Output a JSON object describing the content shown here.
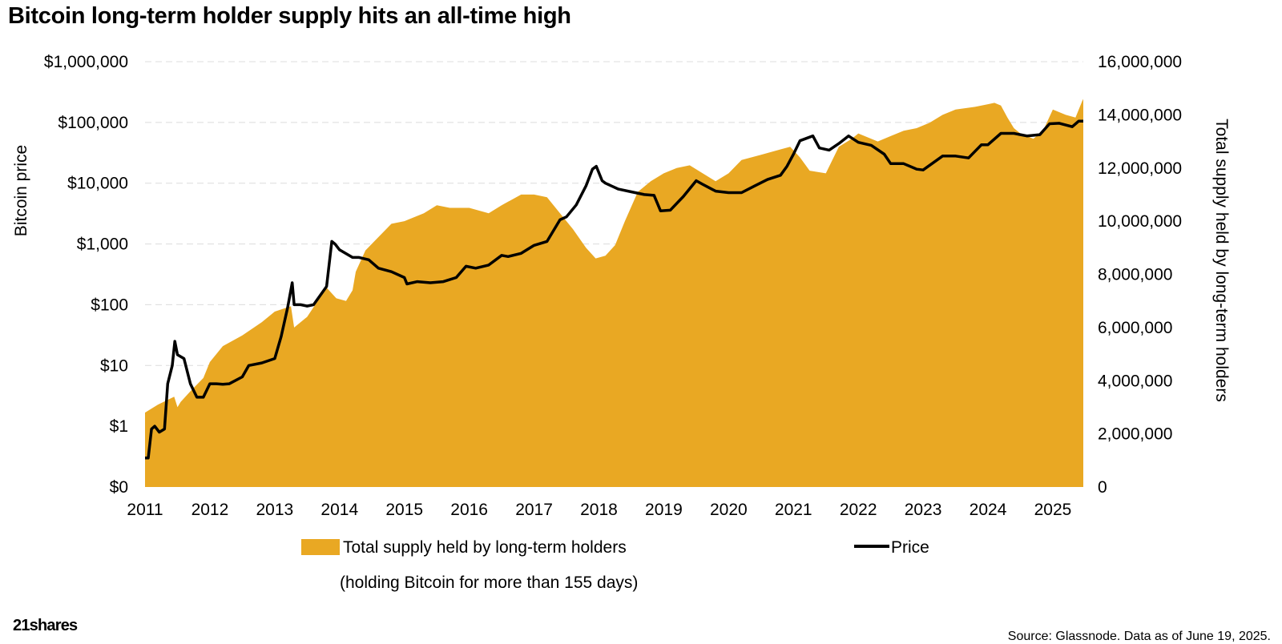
{
  "chart_data": {
    "type": "area+line",
    "title": "Bitcoin long-term holder supply hits an all-time high",
    "left_axis_label": "Bitcoin price",
    "right_axis_label": "Total supply held by long-term holders",
    "left_axis_scale": "log",
    "left_ticks": [
      "$0",
      "$1",
      "$10",
      "$100",
      "$1,000",
      "$10,000",
      "$100,000",
      "$1,000,000"
    ],
    "left_tick_values": [
      0.1,
      1,
      10,
      100,
      1000,
      10000,
      100000,
      1000000
    ],
    "right_ticks": [
      "0",
      "2,000,000",
      "4,000,000",
      "6,000,000",
      "8,000,000",
      "10,000,000",
      "12,000,000",
      "14,000,000",
      "16,000,000"
    ],
    "right_ylim": [
      0,
      16000000
    ],
    "x_ticks": [
      "2011",
      "2012",
      "2013",
      "2014",
      "2015",
      "2016",
      "2017",
      "2018",
      "2019",
      "2020",
      "2021",
      "2022",
      "2023",
      "2024",
      "2025"
    ],
    "xlim": [
      2011.0,
      2025.47
    ],
    "series": [
      {
        "name": "Total supply held by long-term holders",
        "axis": "right",
        "style": "area",
        "color": "#E9A823",
        "x": [
          2011.0,
          2011.2,
          2011.45,
          2011.5,
          2011.55,
          2011.7,
          2011.9,
          2012.0,
          2012.2,
          2012.5,
          2012.8,
          2013.0,
          2013.25,
          2013.3,
          2013.5,
          2013.8,
          2013.95,
          2014.1,
          2014.2,
          2014.25,
          2014.4,
          2014.6,
          2014.8,
          2015.0,
          2015.3,
          2015.5,
          2015.7,
          2016.0,
          2016.3,
          2016.5,
          2016.8,
          2017.0,
          2017.2,
          2017.4,
          2017.6,
          2017.8,
          2017.95,
          2018.1,
          2018.25,
          2018.4,
          2018.6,
          2018.8,
          2019.0,
          2019.2,
          2019.4,
          2019.6,
          2019.8,
          2020.0,
          2020.2,
          2020.5,
          2020.8,
          2020.95,
          2021.1,
          2021.25,
          2021.5,
          2021.7,
          2021.9,
          2022.0,
          2022.3,
          2022.5,
          2022.7,
          2022.9,
          2023.1,
          2023.3,
          2023.5,
          2023.8,
          2024.0,
          2024.1,
          2024.2,
          2024.3,
          2024.4,
          2024.5,
          2024.7,
          2024.85,
          2025.0,
          2025.2,
          2025.35,
          2025.45,
          2025.47
        ],
        "values": [
          2800000,
          3100000,
          3400000,
          3000000,
          3200000,
          3600000,
          4100000,
          4700000,
          5300000,
          5700000,
          6200000,
          6600000,
          6800000,
          6000000,
          6400000,
          7500000,
          7100000,
          7000000,
          7400000,
          8100000,
          8900000,
          9400000,
          9900000,
          10000000,
          10300000,
          10600000,
          10500000,
          10500000,
          10300000,
          10600000,
          11000000,
          11000000,
          10900000,
          10300000,
          9700000,
          9000000,
          8600000,
          8700000,
          9100000,
          10000000,
          11100000,
          11500000,
          11800000,
          12000000,
          12100000,
          11800000,
          11500000,
          11800000,
          12300000,
          12500000,
          12700000,
          12800000,
          12400000,
          11900000,
          11800000,
          12800000,
          13100000,
          13300000,
          13000000,
          13200000,
          13400000,
          13500000,
          13700000,
          14000000,
          14200000,
          14300000,
          14400000,
          14450000,
          14350000,
          13900000,
          13500000,
          13300000,
          13100000,
          13400000,
          14200000,
          14000000,
          13900000,
          14500000,
          14600000
        ]
      },
      {
        "name": "Price",
        "axis": "left",
        "style": "line",
        "color": "#000000",
        "x": [
          2011.0,
          2011.05,
          2011.1,
          2011.15,
          2011.22,
          2011.3,
          2011.35,
          2011.42,
          2011.46,
          2011.5,
          2011.6,
          2011.7,
          2011.8,
          2011.9,
          2012.0,
          2012.1,
          2012.2,
          2012.3,
          2012.5,
          2012.6,
          2012.8,
          2013.0,
          2013.1,
          2013.2,
          2013.27,
          2013.3,
          2013.4,
          2013.5,
          2013.6,
          2013.8,
          2013.88,
          2013.93,
          2014.0,
          2014.2,
          2014.3,
          2014.45,
          2014.6,
          2014.8,
          2015.0,
          2015.04,
          2015.2,
          2015.4,
          2015.6,
          2015.8,
          2015.95,
          2016.1,
          2016.3,
          2016.5,
          2016.6,
          2016.8,
          2017.0,
          2017.2,
          2017.4,
          2017.5,
          2017.65,
          2017.8,
          2017.9,
          2017.96,
          2018.05,
          2018.1,
          2018.3,
          2018.5,
          2018.7,
          2018.85,
          2018.95,
          2019.1,
          2019.3,
          2019.5,
          2019.6,
          2019.8,
          2020.0,
          2020.2,
          2020.4,
          2020.6,
          2020.8,
          2020.9,
          2021.0,
          2021.1,
          2021.3,
          2021.4,
          2021.55,
          2021.7,
          2021.85,
          2022.0,
          2022.2,
          2022.4,
          2022.5,
          2022.7,
          2022.9,
          2023.0,
          2023.3,
          2023.5,
          2023.7,
          2023.9,
          2024.0,
          2024.2,
          2024.4,
          2024.6,
          2024.8,
          2024.95,
          2025.1,
          2025.3,
          2025.4,
          2025.47
        ],
        "values": [
          0.3,
          0.3,
          0.9,
          1.0,
          0.8,
          0.9,
          5,
          10,
          25,
          15,
          13,
          5,
          3,
          3,
          5,
          5,
          4.9,
          5,
          6.5,
          10,
          11,
          13,
          30,
          90,
          230,
          100,
          100,
          95,
          100,
          200,
          1100,
          1000,
          800,
          600,
          600,
          550,
          400,
          350,
          280,
          220,
          240,
          230,
          240,
          280,
          430,
          400,
          450,
          650,
          620,
          700,
          950,
          1100,
          2500,
          2800,
          4400,
          9000,
          17000,
          19000,
          11000,
          10000,
          8000,
          7200,
          6500,
          6300,
          3500,
          3600,
          6000,
          11000,
          9600,
          7400,
          7000,
          7000,
          9000,
          11500,
          13500,
          19000,
          30000,
          50000,
          60000,
          38000,
          35000,
          45000,
          60000,
          47000,
          42000,
          30000,
          21000,
          21000,
          17000,
          16500,
          28000,
          28000,
          26000,
          43000,
          43000,
          66000,
          66000,
          60000,
          63000,
          95000,
          97000,
          85000,
          105000,
          105000
        ]
      }
    ]
  },
  "legend": {
    "supply_label": "Total supply held by long-term holders",
    "supply_sublabel": "(holding Bitcoin for more than 155 days)",
    "price_label": "Price"
  },
  "branding": {
    "logo_text": "21shares"
  },
  "source": "Source: Glassnode. Data as of June 19, 2025.",
  "colors": {
    "area": "#E9A823",
    "line": "#000000",
    "grid": "#dcdcdc"
  }
}
